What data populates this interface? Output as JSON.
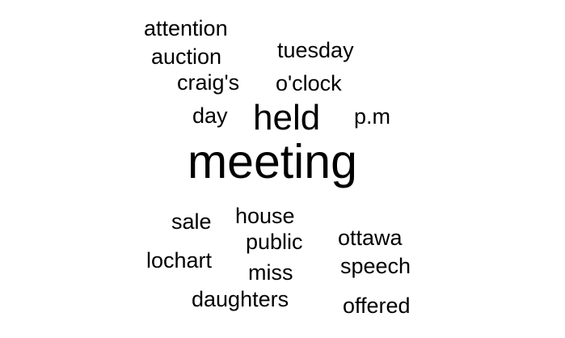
{
  "word_cloud": {
    "words": {
      "attention": "attention",
      "auction": "auction",
      "tuesday": "tuesday",
      "craigs": "craig's",
      "oclock": "o'clock",
      "day": "day",
      "held": "held",
      "pm": "p.m",
      "meeting": "meeting",
      "sale": "sale",
      "house": "house",
      "public": "public",
      "ottawa": "ottawa",
      "lochart": "lochart",
      "speech": "speech",
      "miss": "miss",
      "daughters": "daughters",
      "offered": "offered"
    },
    "text_color": "#000000",
    "background_color": "#ffffff"
  }
}
